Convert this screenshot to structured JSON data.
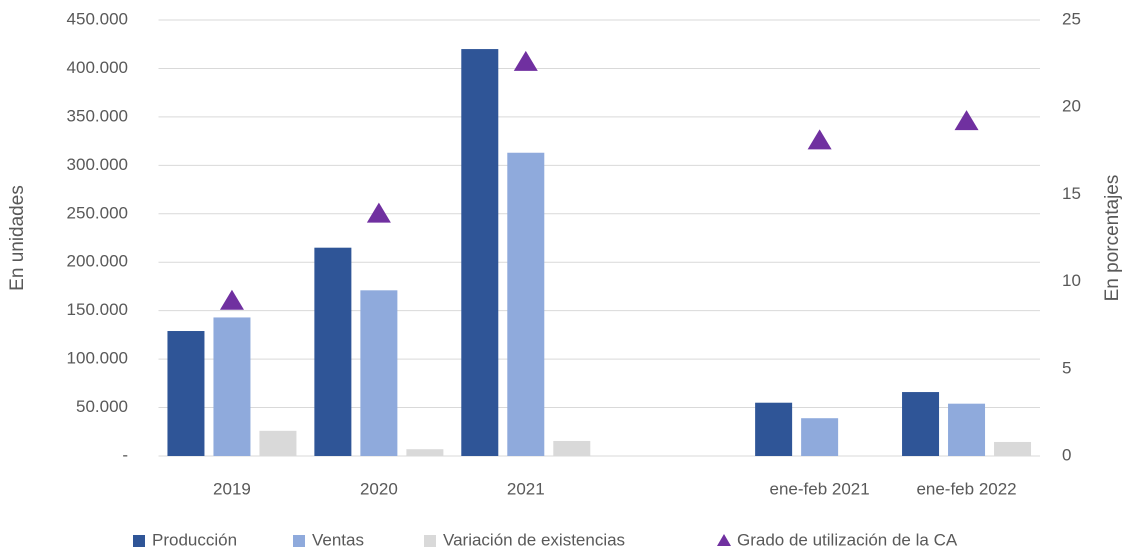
{
  "chart_data": {
    "type": "bar",
    "categories": [
      "2019",
      "2020",
      "2021",
      null,
      "ene-feb 2021",
      "ene-feb 2022"
    ],
    "series": [
      {
        "name": "Producción",
        "color": "#2f5597",
        "values": [
          129000,
          215000,
          420000,
          null,
          55000,
          66000
        ]
      },
      {
        "name": "Ventas",
        "color": "#8faadc",
        "values": [
          143000,
          171000,
          313000,
          null,
          39000,
          54000
        ]
      },
      {
        "name": "Variación de existencias",
        "color": "#d9d9d9",
        "values": [
          26000,
          7000,
          15500,
          null,
          0,
          14500
        ]
      },
      {
        "name": "Grado de utilización de la CA",
        "color": "#7030a0",
        "axis": "y2",
        "type": "scatter",
        "values": [
          8.9,
          13.9,
          22.6,
          null,
          18.1,
          19.2
        ]
      }
    ],
    "ylabel": "En unidades",
    "y2label": "En porcentajes",
    "ylim": [
      0,
      450000
    ],
    "yticks": [
      {
        "value": 0,
        "label": "-"
      },
      {
        "value": 50000,
        "label": "50.000"
      },
      {
        "value": 100000,
        "label": "100.000"
      },
      {
        "value": 150000,
        "label": "150.000"
      },
      {
        "value": 200000,
        "label": "200.000"
      },
      {
        "value": 250000,
        "label": "250.000"
      },
      {
        "value": 300000,
        "label": "300.000"
      },
      {
        "value": 350000,
        "label": "350.000"
      },
      {
        "value": 400000,
        "label": "400.000"
      },
      {
        "value": 450000,
        "label": "450.000"
      }
    ],
    "y2lim": [
      0,
      25
    ],
    "y2ticks": [
      0,
      5,
      10,
      15,
      20,
      25
    ],
    "grid": true,
    "legend": "bottom"
  }
}
